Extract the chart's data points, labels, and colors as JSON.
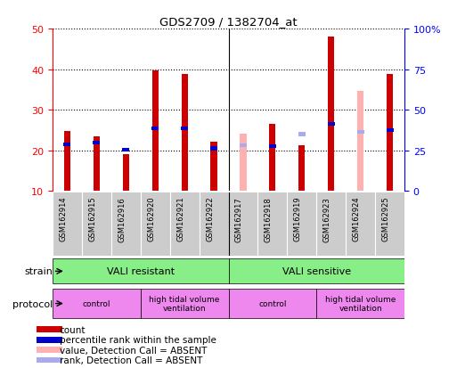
{
  "title": "GDS2709 / 1382704_at",
  "samples": [
    "GSM162914",
    "GSM162915",
    "GSM162916",
    "GSM162920",
    "GSM162921",
    "GSM162922",
    "GSM162917",
    "GSM162918",
    "GSM162919",
    "GSM162923",
    "GSM162924",
    "GSM162925"
  ],
  "count_values": [
    24.8,
    23.5,
    19.0,
    39.7,
    38.8,
    22.2,
    null,
    26.5,
    21.2,
    48.0,
    null,
    38.8
  ],
  "count_absent": [
    null,
    null,
    null,
    null,
    null,
    null,
    24.2,
    null,
    null,
    null,
    34.7,
    null
  ],
  "rank_values": [
    21.5,
    22.0,
    20.2,
    25.5,
    25.5,
    20.5,
    null,
    21.0,
    24.0,
    26.5,
    null,
    25.0
  ],
  "rank_absent": [
    null,
    null,
    null,
    null,
    null,
    null,
    21.2,
    null,
    24.0,
    null,
    24.5,
    null
  ],
  "ylim_left": [
    10,
    50
  ],
  "ylim_right": [
    0,
    100
  ],
  "yticks_left": [
    10,
    20,
    30,
    40,
    50
  ],
  "yticks_right": [
    0,
    25,
    50,
    75,
    100
  ],
  "count_color": "#cc0000",
  "count_absent_color": "#ffb0b0",
  "rank_color": "#0000cc",
  "rank_absent_color": "#aaaaee",
  "strain_resistant_label": "VALI resistant",
  "strain_sensitive_label": "VALI sensitive",
  "protocol_control_label": "control",
  "protocol_vent_label": "high tidal volume\nventilation",
  "strain_color": "#88ee88",
  "protocol_color": "#ee88ee",
  "bg_color": "#ffffff",
  "legend_items": [
    "count",
    "percentile rank within the sample",
    "value, Detection Call = ABSENT",
    "rank, Detection Call = ABSENT"
  ],
  "legend_colors": [
    "#cc0000",
    "#0000cc",
    "#ffb0b0",
    "#aaaaee"
  ]
}
